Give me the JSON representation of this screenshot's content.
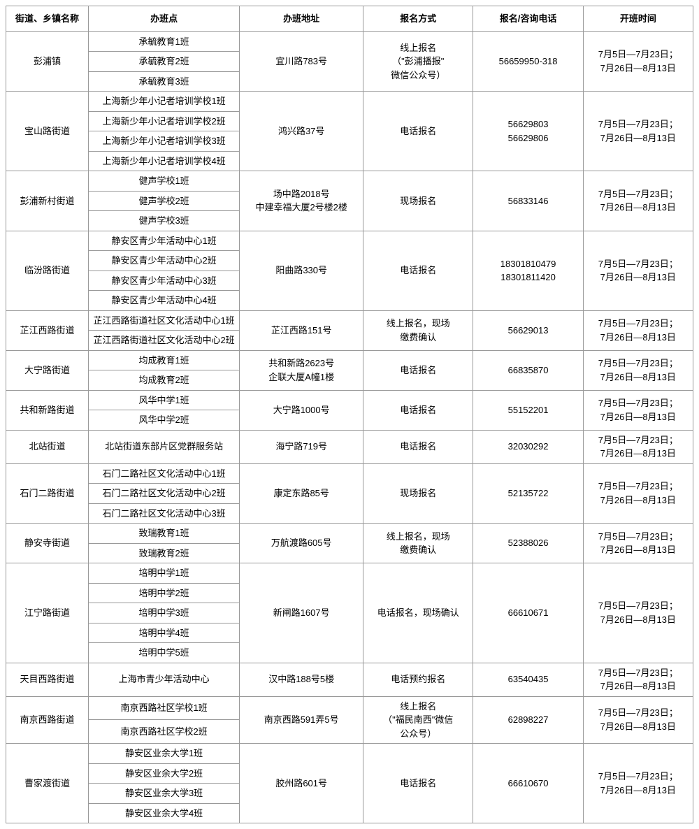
{
  "headers": {
    "street": "街道、乡镇名称",
    "classPoint": "办班点",
    "address": "办班地址",
    "registerMethod": "报名方式",
    "phone": "报名/咨询电话",
    "time": "开班时间"
  },
  "commonTime": "7月5日—7月23日；\n7月26日—8月13日",
  "groups": [
    {
      "street": "彭浦镇",
      "classes": [
        "承毓教育1班",
        "承毓教育2班",
        "承毓教育3班"
      ],
      "address": "宜川路783号",
      "method": "线上报名\n（\"彭浦播报\"\n微信公众号）",
      "phone": "56659950-318"
    },
    {
      "street": "宝山路街道",
      "classes": [
        "上海新少年小记者培训学校1班",
        "上海新少年小记者培训学校2班",
        "上海新少年小记者培训学校3班",
        "上海新少年小记者培训学校4班"
      ],
      "address": "鸿兴路37号",
      "method": "电话报名",
      "phone": "56629803\n56629806"
    },
    {
      "street": "彭浦新村街道",
      "classes": [
        "健声学校1班",
        "健声学校2班",
        "健声学校3班"
      ],
      "address": "场中路2018号\n中建幸福大厦2号楼2楼",
      "method": "现场报名",
      "phone": "56833146"
    },
    {
      "street": "临汾路街道",
      "classes": [
        "静安区青少年活动中心1班",
        "静安区青少年活动中心2班",
        "静安区青少年活动中心3班",
        "静安区青少年活动中心4班"
      ],
      "address": "阳曲路330号",
      "method": "电话报名",
      "phone": "18301810479\n18301811420"
    },
    {
      "street": "芷江西路街道",
      "classes": [
        "芷江西路街道社区文化活动中心1班",
        "芷江西路街道社区文化活动中心2班"
      ],
      "address": "芷江西路151号",
      "method": "线上报名，现场\n缴费确认",
      "phone": "56629013"
    },
    {
      "street": "大宁路街道",
      "classes": [
        "均成教育1班",
        "均成教育2班"
      ],
      "address": "共和新路2623号\n企联大厦A幢1楼",
      "method": "电话报名",
      "phone": "66835870"
    },
    {
      "street": "共和新路街道",
      "classes": [
        "风华中学1班",
        "风华中学2班"
      ],
      "address": "大宁路1000号",
      "method": "电话报名",
      "phone": "55152201"
    },
    {
      "street": "北站街道",
      "classes": [
        "北站街道东部片区党群服务站"
      ],
      "address": "海宁路719号",
      "method": "电话报名",
      "phone": "32030292"
    },
    {
      "street": "石门二路街道",
      "classes": [
        "石门二路社区文化活动中心1班",
        "石门二路社区文化活动中心2班",
        "石门二路社区文化活动中心3班"
      ],
      "address": "康定东路85号",
      "method": "现场报名",
      "phone": "52135722"
    },
    {
      "street": "静安寺街道",
      "classes": [
        "致瑞教育1班",
        "致瑞教育2班"
      ],
      "address": "万航渡路605号",
      "method": "线上报名，现场\n缴费确认",
      "phone": "52388026"
    },
    {
      "street": "江宁路街道",
      "classes": [
        "培明中学1班",
        "培明中学2班",
        "培明中学3班",
        "培明中学4班",
        "培明中学5班"
      ],
      "address": "新闸路1607号",
      "method": "电话报名，现场确认",
      "phone": "66610671"
    },
    {
      "street": "天目西路街道",
      "classes": [
        "上海市青少年活动中心"
      ],
      "address": "汉中路188号5楼",
      "method": "电话预约报名",
      "phone": "63540435"
    },
    {
      "street": "南京西路街道",
      "classes": [
        "南京西路社区学校1班",
        "南京西路社区学校2班"
      ],
      "address": "南京西路591弄5号",
      "method": "线上报名\n（\"福民南西\"微信\n公众号）",
      "phone": "62898227"
    },
    {
      "street": "曹家渡街道",
      "classes": [
        "静安区业余大学1班",
        "静安区业余大学2班",
        "静安区业余大学3班",
        "静安区业余大学4班"
      ],
      "address": "胶州路601号",
      "method": "电话报名",
      "phone": "66610670"
    }
  ]
}
